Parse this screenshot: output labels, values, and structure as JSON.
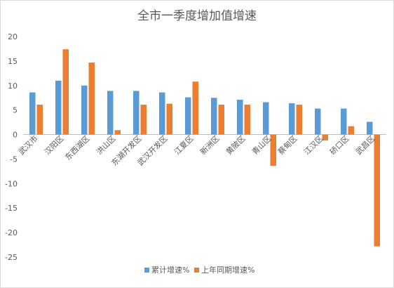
{
  "chart_data": {
    "type": "bar",
    "title": "全市一季度增加值增速",
    "categories": [
      "武汉市",
      "汉阳区",
      "东西湖区",
      "洪山区",
      "东湖开发区",
      "武汉开发区",
      "江夏区",
      "新洲区",
      "黄陂区",
      "青山区",
      "蔡甸区",
      "江汉区",
      "硚口区",
      "武昌区"
    ],
    "series": [
      {
        "name": "累计增速%",
        "color": "#5b9bd5",
        "values": [
          8.6,
          11.0,
          10.0,
          8.9,
          8.9,
          8.6,
          7.6,
          7.5,
          7.1,
          6.6,
          6.4,
          5.3,
          5.3,
          2.6
        ]
      },
      {
        "name": "上年同期增速%",
        "color": "#ed7d31",
        "values": [
          6.1,
          17.4,
          14.7,
          0.9,
          6.1,
          6.3,
          10.8,
          6.1,
          6.1,
          -6.4,
          6.1,
          -1.2,
          1.7,
          -22.8
        ]
      }
    ],
    "ylim": [
      -25,
      20
    ],
    "yticks": [
      20,
      15,
      10,
      5,
      0,
      -5,
      -10,
      -15,
      -20,
      -25
    ],
    "grid": false,
    "legend": "bottom"
  }
}
